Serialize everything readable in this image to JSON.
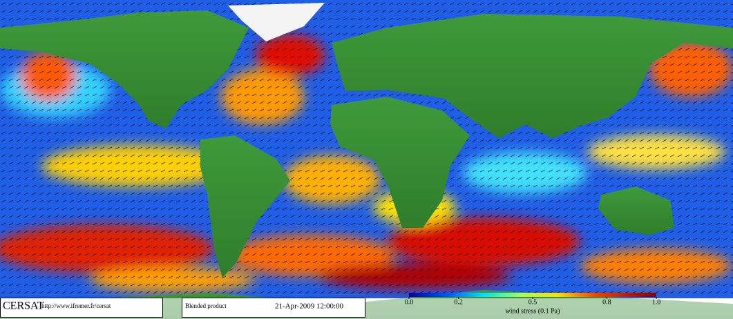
{
  "header": {
    "logo": "CERSAT",
    "url": "http://www.ifremer.fr/cersat",
    "product": "Blended product",
    "date": "21-Apr-2009 12:00:00"
  },
  "colorbar": {
    "label": "wind stress (0.1 Pa)",
    "lim": [
      0,
      1
    ],
    "ticks": [
      {
        "value": 0,
        "label": "0.0"
      },
      0.2,
      0.5,
      0.8,
      {
        "value": 1,
        "label": "1.0"
      }
    ]
  }
}
